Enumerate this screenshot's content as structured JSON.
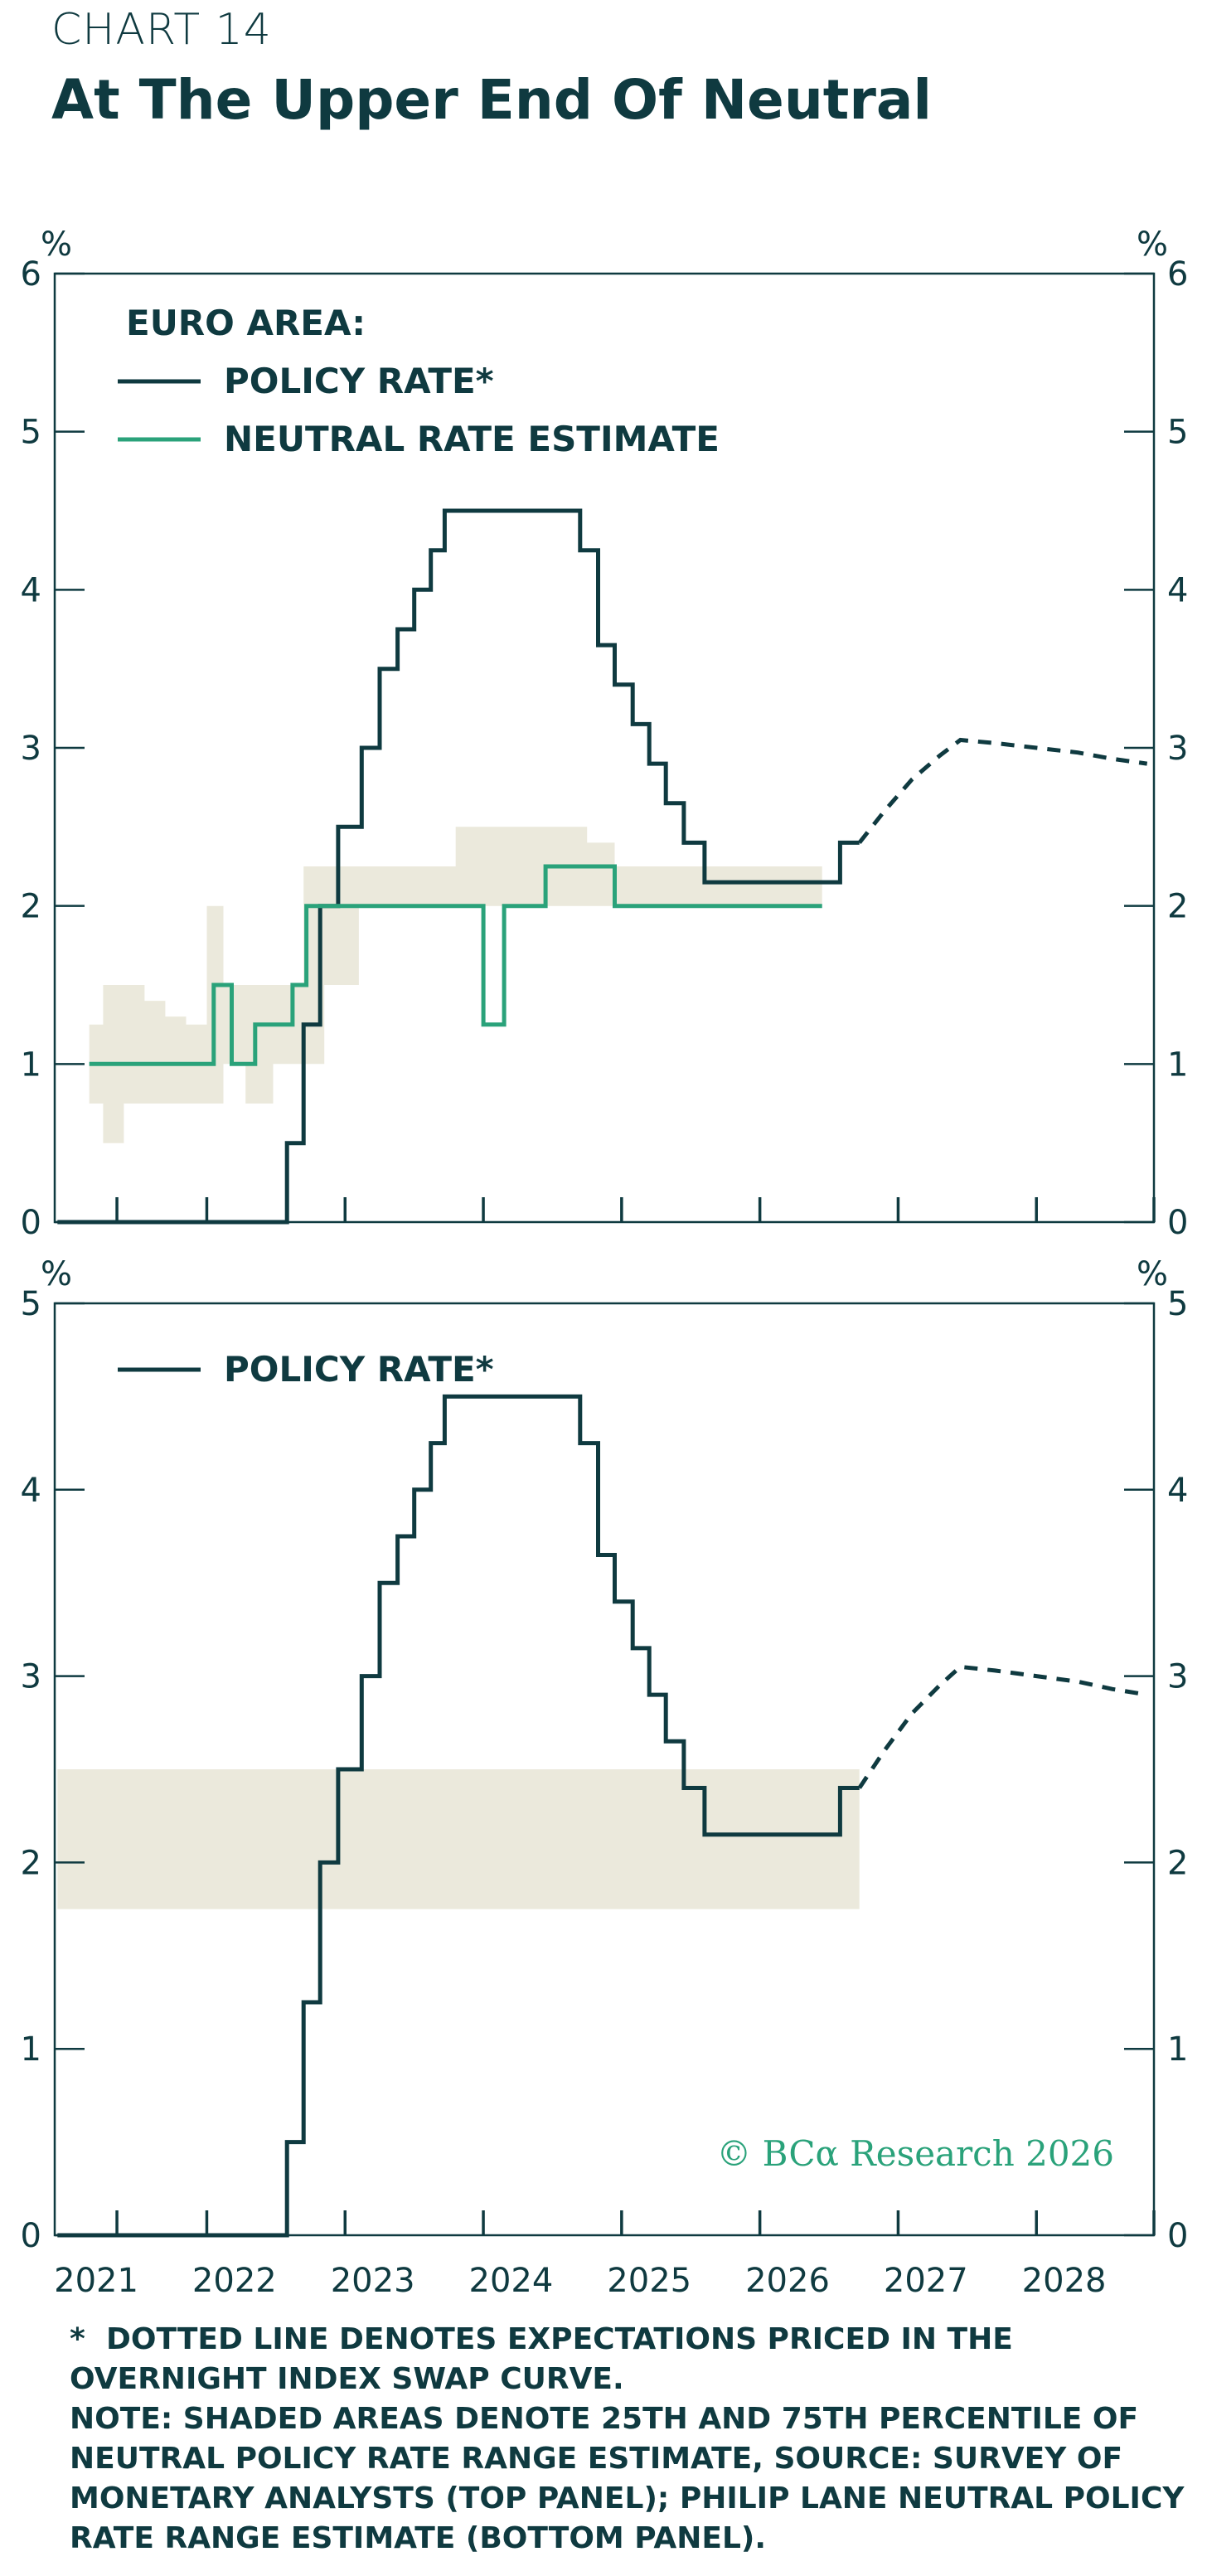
{
  "header": {
    "chart_label": "CHART 14",
    "title": "At The Upper End Of Neutral"
  },
  "colors": {
    "policy_rate": "#0f3a40",
    "neutral_rate": "#2aa27a",
    "band": "#ebe9dc",
    "axis": "#0f3a40",
    "copyright": "#2aa27a"
  },
  "copyright": "© BCα Research 2026",
  "footnotes": {
    "star_symbol": "*",
    "star_note": "DOTTED LINE DENOTES EXPECTATIONS PRICED IN THE OVERNIGHT INDEX SWAP CURVE.",
    "note": "NOTE: SHADED AREAS DENOTE 25TH AND 75TH PERCENTILE OF NEUTRAL POLICY RATE RANGE ESTIMATE, SOURCE: SURVEY OF MONETARY ANALYSTS (TOP PANEL); PHILIP LANE NEUTRAL POLICY RATE RANGE ESTIMATE (BOTTOM PANEL)."
  },
  "chart_data": [
    {
      "type": "line",
      "panel": "top",
      "unit_left": "%",
      "unit_right": "%",
      "ylim": [
        0,
        6
      ],
      "yticks": [
        0,
        1,
        2,
        3,
        4,
        5,
        6
      ],
      "xlim": [
        2020.9,
        2028.85
      ],
      "xticks": [
        "2021",
        "2022",
        "2023",
        "2024",
        "2025",
        "2026",
        "2027",
        "2028"
      ],
      "legend_title": "EURO AREA:",
      "legend_position": "top-left",
      "series": [
        {
          "name": "POLICY RATE*",
          "style": "solid-step",
          "points": [
            [
              2020.92,
              0
            ],
            [
              2022.45,
              0
            ],
            [
              2022.58,
              0.5
            ],
            [
              2022.7,
              1.25
            ],
            [
              2022.82,
              2
            ],
            [
              2022.95,
              2.5
            ],
            [
              2023.12,
              3
            ],
            [
              2023.25,
              3.5
            ],
            [
              2023.38,
              3.75
            ],
            [
              2023.5,
              4
            ],
            [
              2023.62,
              4.25
            ],
            [
              2023.72,
              4.5
            ],
            [
              2024.45,
              4.5
            ],
            [
              2024.7,
              4.25
            ],
            [
              2024.83,
              3.65
            ],
            [
              2024.95,
              3.4
            ],
            [
              2025.08,
              3.15
            ],
            [
              2025.2,
              2.9
            ],
            [
              2025.32,
              2.65
            ],
            [
              2025.45,
              2.4
            ],
            [
              2025.6,
              2.15
            ],
            [
              2026.45,
              2.15
            ],
            [
              2026.58,
              2.4
            ],
            [
              2026.72,
              2.4
            ]
          ]
        },
        {
          "name": "POLICY RATE* (OIS expectations)",
          "style": "dashed",
          "points": [
            [
              2026.72,
              2.4
            ],
            [
              2026.9,
              2.6
            ],
            [
              2027.1,
              2.8
            ],
            [
              2027.3,
              2.95
            ],
            [
              2027.45,
              3.05
            ],
            [
              2027.7,
              3.03
            ],
            [
              2028.0,
              3.0
            ],
            [
              2028.3,
              2.97
            ],
            [
              2028.55,
              2.93
            ],
            [
              2028.8,
              2.9
            ]
          ]
        },
        {
          "name": "NEUTRAL RATE ESTIMATE",
          "style": "solid-step",
          "points": [
            [
              2021.15,
              1
            ],
            [
              2022.05,
              1
            ],
            [
              2022.05,
              1.5
            ],
            [
              2022.18,
              1.5
            ],
            [
              2022.18,
              1.0
            ],
            [
              2022.35,
              1.0
            ],
            [
              2022.35,
              1.25
            ],
            [
              2022.62,
              1.25
            ],
            [
              2022.62,
              1.5
            ],
            [
              2022.72,
              1.5
            ],
            [
              2022.72,
              2.0
            ],
            [
              2024.0,
              2.0
            ],
            [
              2024.0,
              1.25
            ],
            [
              2024.15,
              1.25
            ],
            [
              2024.15,
              2.0
            ],
            [
              2024.45,
              2.0
            ],
            [
              2024.45,
              2.25
            ],
            [
              2024.95,
              2.25
            ],
            [
              2024.95,
              2.0
            ],
            [
              2026.45,
              2.0
            ]
          ]
        }
      ],
      "bands": [
        [
          2021.15,
          0.75,
          1.25
        ],
        [
          2021.25,
          0.5,
          1.5
        ],
        [
          2021.4,
          0.75,
          1.5
        ],
        [
          2021.55,
          0.75,
          1.4
        ],
        [
          2021.7,
          0.75,
          1.3
        ],
        [
          2021.85,
          0.75,
          1.25
        ],
        [
          2022.0,
          0.75,
          2.0
        ],
        [
          2022.12,
          1.0,
          1.5
        ],
        [
          2022.28,
          0.75,
          1.5
        ],
        [
          2022.48,
          1.0,
          1.5
        ],
        [
          2022.7,
          1.0,
          2.25
        ],
        [
          2022.85,
          1.5,
          2.25
        ],
        [
          2023.1,
          2.0,
          2.25
        ],
        [
          2023.5,
          2.0,
          2.25
        ],
        [
          2023.8,
          2.0,
          2.5
        ],
        [
          2024.5,
          2.0,
          2.5
        ],
        [
          2024.75,
          2.0,
          2.4
        ],
        [
          2024.95,
          2.0,
          2.25
        ],
        [
          2026.45,
          2.0,
          2.25
        ]
      ]
    },
    {
      "type": "line",
      "panel": "bottom",
      "unit_left": "%",
      "unit_right": "%",
      "ylim": [
        0,
        5
      ],
      "yticks": [
        0,
        1,
        2,
        3,
        4,
        5
      ],
      "xlim": [
        2020.9,
        2028.85
      ],
      "xticks": [
        "2021",
        "2022",
        "2023",
        "2024",
        "2025",
        "2026",
        "2027",
        "2028"
      ],
      "legend_position": "top-left",
      "series": [
        {
          "name": "POLICY RATE*",
          "style": "solid-step",
          "points": [
            [
              2020.92,
              0
            ],
            [
              2022.45,
              0
            ],
            [
              2022.58,
              0.5
            ],
            [
              2022.7,
              1.25
            ],
            [
              2022.82,
              2
            ],
            [
              2022.95,
              2.5
            ],
            [
              2023.12,
              3
            ],
            [
              2023.25,
              3.5
            ],
            [
              2023.38,
              3.75
            ],
            [
              2023.5,
              4
            ],
            [
              2023.62,
              4.25
            ],
            [
              2023.72,
              4.5
            ],
            [
              2024.45,
              4.5
            ],
            [
              2024.7,
              4.25
            ],
            [
              2024.83,
              3.65
            ],
            [
              2024.95,
              3.4
            ],
            [
              2025.08,
              3.15
            ],
            [
              2025.2,
              2.9
            ],
            [
              2025.32,
              2.65
            ],
            [
              2025.45,
              2.4
            ],
            [
              2025.6,
              2.15
            ],
            [
              2026.45,
              2.15
            ],
            [
              2026.58,
              2.4
            ],
            [
              2026.72,
              2.4
            ]
          ]
        },
        {
          "name": "POLICY RATE* (OIS expectations)",
          "style": "dashed",
          "points": [
            [
              2026.72,
              2.4
            ],
            [
              2026.9,
              2.6
            ],
            [
              2027.1,
              2.8
            ],
            [
              2027.3,
              2.95
            ],
            [
              2027.45,
              3.05
            ],
            [
              2027.7,
              3.03
            ],
            [
              2028.0,
              3.0
            ],
            [
              2028.3,
              2.97
            ],
            [
              2028.55,
              2.93
            ],
            [
              2028.8,
              2.9
            ]
          ]
        }
      ],
      "bands": [
        [
          2020.92,
          1.75,
          2.5
        ],
        [
          2026.72,
          1.75,
          2.5
        ]
      ]
    }
  ]
}
